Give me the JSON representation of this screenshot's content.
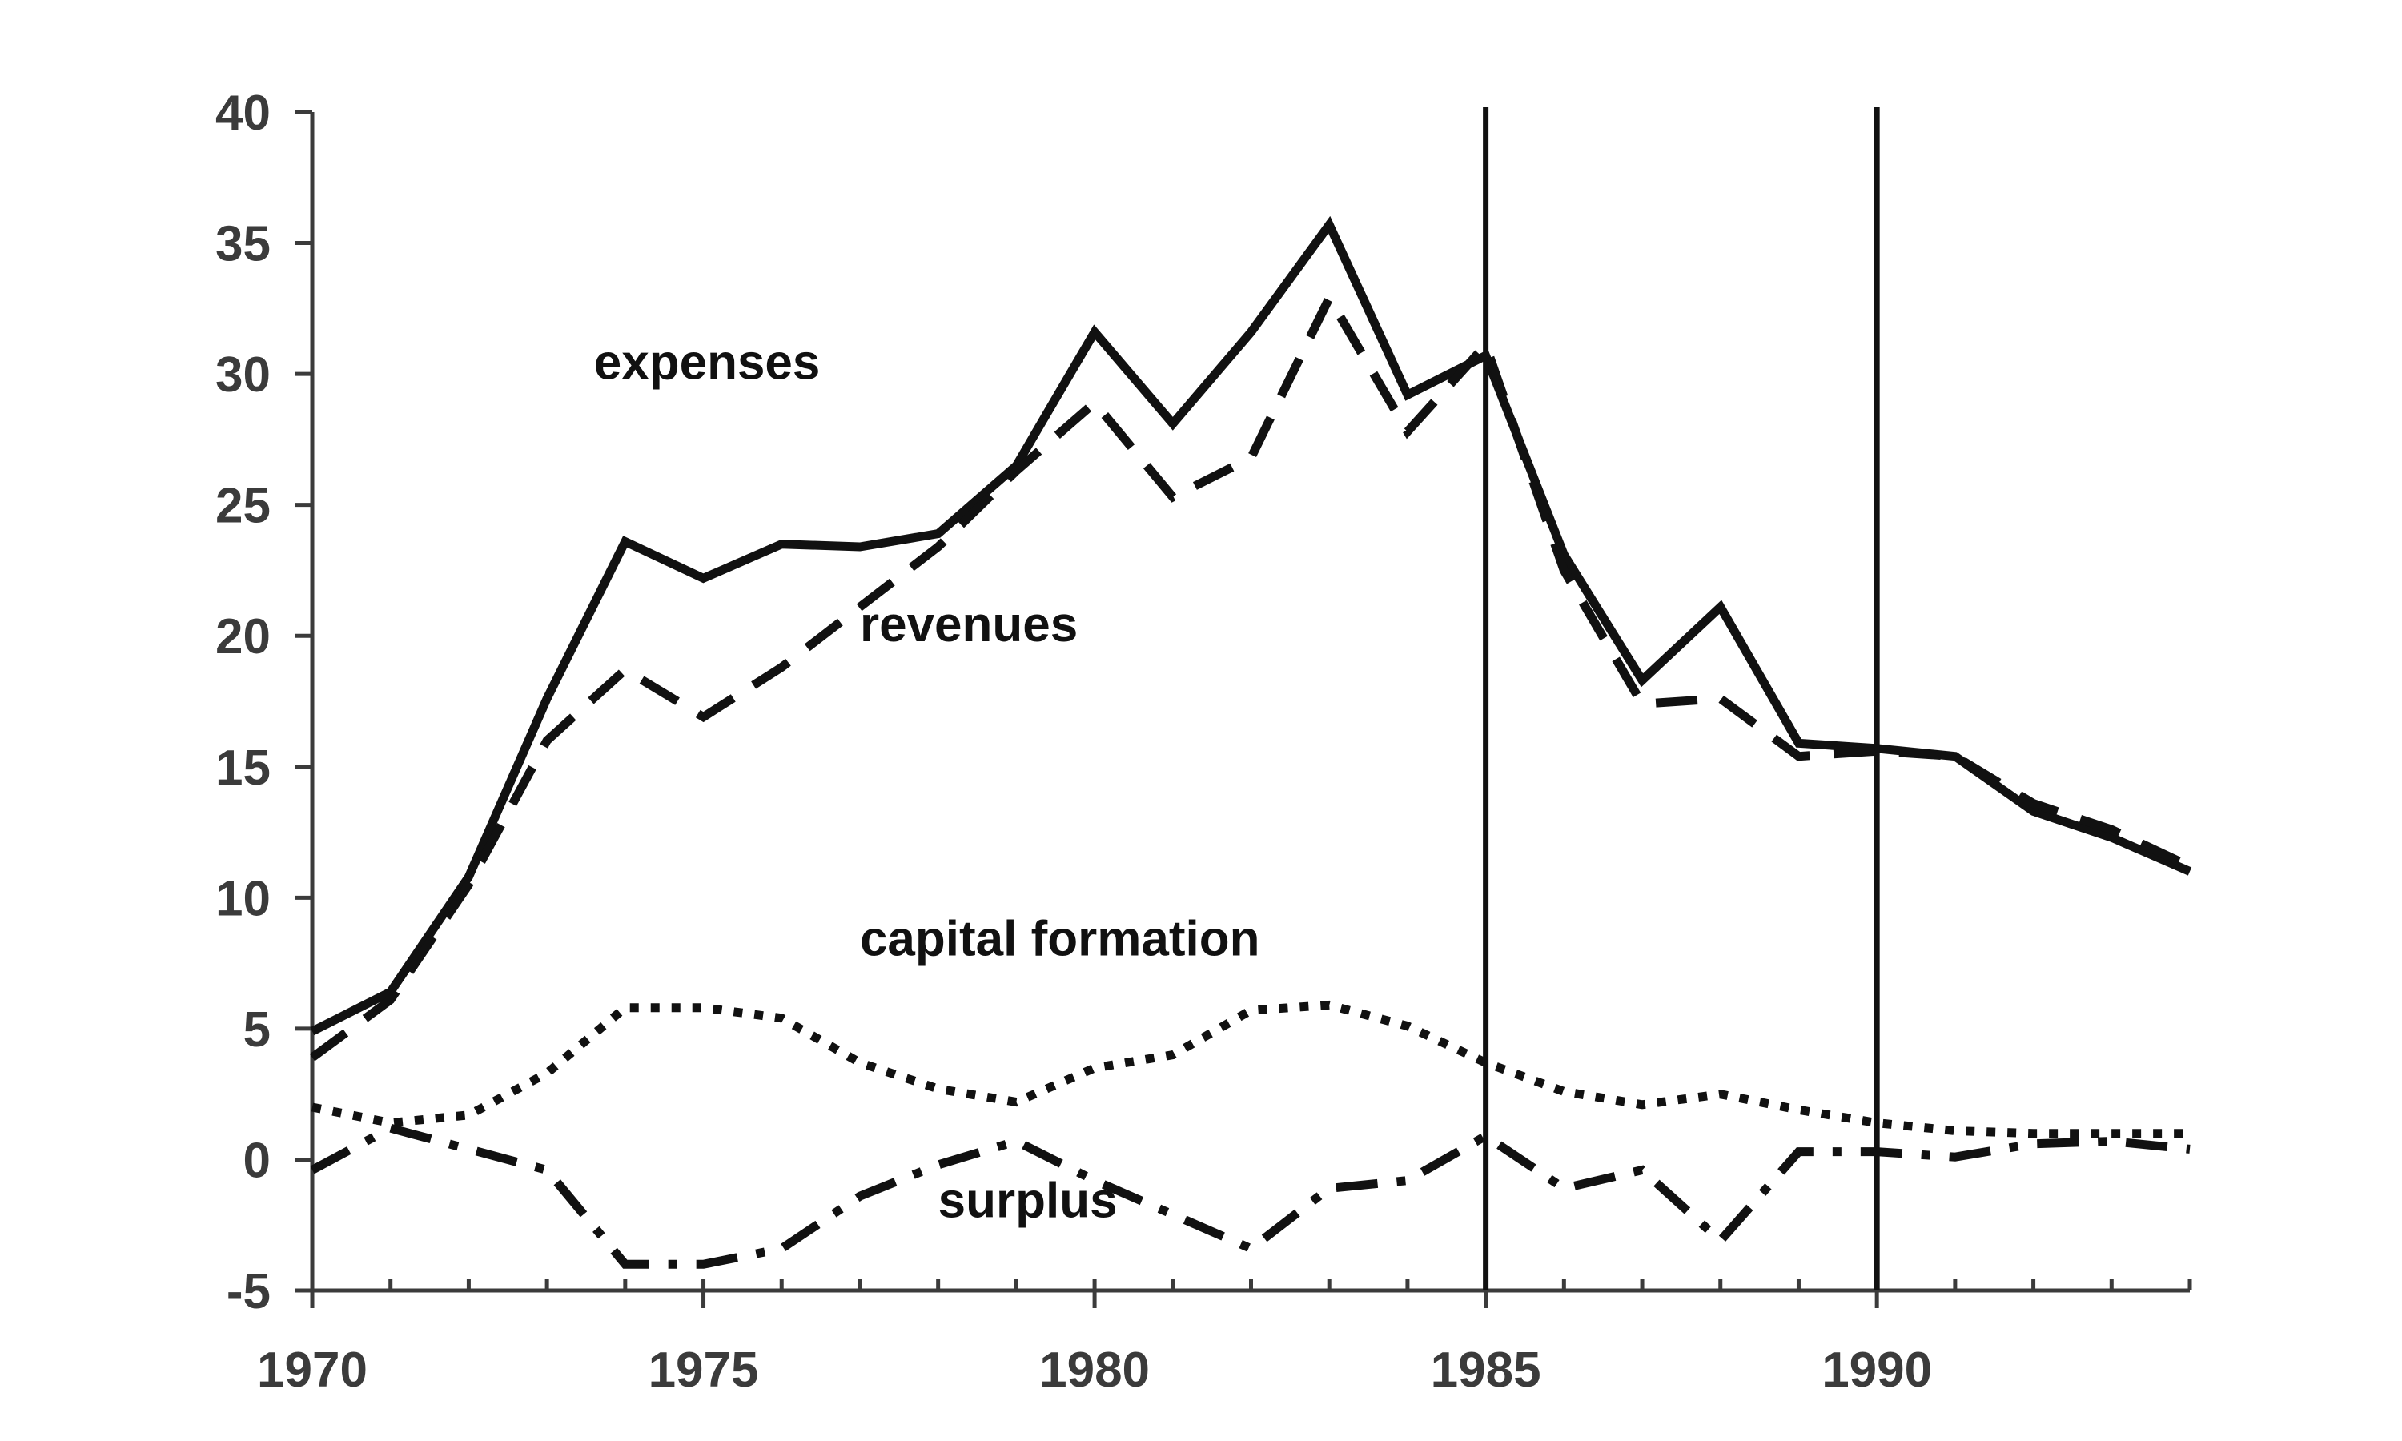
{
  "chart_data": {
    "type": "line",
    "title": "",
    "xlabel": "",
    "ylabel": "",
    "xlim": [
      1970,
      1994
    ],
    "ylim": [
      -5,
      40
    ],
    "x_ticks": [
      1970,
      1975,
      1980,
      1985,
      1990
    ],
    "y_ticks": [
      -5,
      0,
      5,
      10,
      15,
      20,
      25,
      30,
      35,
      40
    ],
    "grid": false,
    "legend": "none",
    "reference_lines_x": [
      1985,
      1990
    ],
    "x": [
      1970,
      1971,
      1972,
      1973,
      1974,
      1975,
      1976,
      1977,
      1978,
      1979,
      1980,
      1981,
      1982,
      1983,
      1984,
      1985,
      1986,
      1987,
      1988,
      1989,
      1990,
      1991,
      1992,
      1993,
      1994
    ],
    "series": [
      {
        "name": "expenses",
        "style": "solid",
        "label_anchor": [
          1973.6,
          29.8
        ],
        "values": [
          4.9,
          6.4,
          10.8,
          17.6,
          23.6,
          22.2,
          23.5,
          23.4,
          23.9,
          26.5,
          31.6,
          28.1,
          31.6,
          35.7,
          29.2,
          30.7,
          23.1,
          18.3,
          21.1,
          15.9,
          15.7,
          15.4,
          13.3,
          12.3,
          11.0
        ]
      },
      {
        "name": "revenues",
        "style": "dashed",
        "label_anchor": [
          1977.0,
          19.8
        ],
        "values": [
          3.9,
          6.1,
          10.5,
          16.0,
          18.7,
          16.9,
          18.8,
          21.1,
          23.4,
          26.3,
          28.9,
          25.3,
          26.8,
          32.9,
          27.8,
          31.1,
          22.5,
          17.4,
          17.6,
          15.4,
          15.6,
          15.4,
          13.6,
          12.6,
          11.2
        ]
      },
      {
        "name": "capital formation",
        "style": "dotted",
        "label_anchor": [
          1977.0,
          7.8
        ],
        "values": [
          2.0,
          1.4,
          1.7,
          3.3,
          5.8,
          5.8,
          5.4,
          3.7,
          2.7,
          2.2,
          3.5,
          4.0,
          5.7,
          5.9,
          5.1,
          3.7,
          2.6,
          2.1,
          2.5,
          1.9,
          1.4,
          1.1,
          1.0,
          1.0,
          1.0
        ]
      },
      {
        "name": "surplus",
        "style": "dashdot",
        "label_anchor": [
          1978.0,
          -2.2
        ],
        "values": [
          -0.4,
          1.2,
          0.4,
          -0.4,
          -4.0,
          -4.0,
          -3.4,
          -1.4,
          -0.2,
          0.7,
          -0.8,
          -2.1,
          -3.4,
          -1.1,
          -0.8,
          0.9,
          -1.1,
          -0.4,
          -3.1,
          0.3,
          0.3,
          0.1,
          0.6,
          0.7,
          0.4
        ]
      }
    ]
  }
}
